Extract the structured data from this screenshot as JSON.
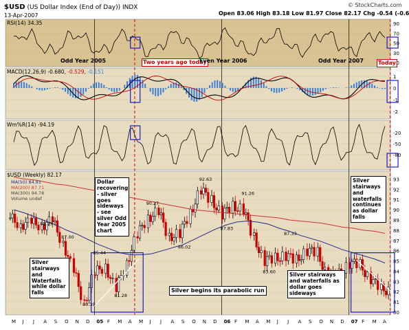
{
  "header": {
    "symbol": "$USD",
    "name": "(US Dollar Index (End of Day))",
    "exchange": "INDX",
    "date": "13-Apr-2007",
    "ohlc_text": "Open 83.06  High 83.18  Low 81.97  Close 82.17  Chg -0.54 (-0.65%)",
    "copyright": "© StockCharts.com"
  },
  "panels": {
    "rsi": {
      "label": "RSI(14) 34.35",
      "ticks": [
        "90",
        "70",
        "50",
        "30",
        "10"
      ]
    },
    "macd": {
      "label_main": "MACD(12,26,9) -0.680,",
      "label_sig": "-0.529,",
      "label_hist": "-0.151",
      "ticks": [
        "1",
        "0",
        "-1",
        "-2"
      ]
    },
    "willr": {
      "label": "Wm%R(14) -94.19",
      "ticks": [
        "-20",
        "-50",
        "-80"
      ]
    },
    "price": {
      "label": "$USD (Weekly) 82.17",
      "legend": [
        "MA(50) 84.81",
        "MA(200) 87.71",
        "MA(300) 94.78",
        "Volume undef"
      ],
      "ticks": [
        "93",
        "92",
        "91",
        "90",
        "89",
        "88",
        "87",
        "86",
        "85",
        "84",
        "83",
        "82",
        "81",
        "80"
      ]
    }
  },
  "x_axis": {
    "ticks": [
      "M",
      "J",
      "J",
      "A",
      "S",
      "O",
      "N",
      "D",
      "05",
      "F",
      "M",
      "A",
      "M",
      "J",
      "J",
      "A",
      "S",
      "O",
      "N",
      "D",
      "06",
      "F",
      "M",
      "A",
      "M",
      "J",
      "J",
      "A",
      "S",
      "O",
      "N",
      "D",
      "07",
      "F",
      "M",
      "A"
    ]
  },
  "annotations": {
    "odd_2005": "Odd Year 2005",
    "two_years": "Two years ago today",
    "even_2006": "Even Year 2006",
    "odd_2007": "Odd Year 2007",
    "today": "Today",
    "parabolic": "Silver begins its parabolic run",
    "callout_1": "Silver stairways and Waterfalls while dollar falls",
    "callout_2": "Dollar recovering - silver goes sideways - see silver Odd Year 2005 chart",
    "callout_3": "Silver stairways and waterfalls as dollar goes sideways",
    "callout_4": "Silver stairways and waterfalls continues as dollar falls"
  },
  "colors": {
    "panel_bg": "#e8dcc0",
    "rsi_bg": "#d9c392",
    "up": "#000000",
    "down": "#cc0000",
    "ma50": "#1f2a8a",
    "ma200": "#cc3333",
    "hist": "#3a7fd5",
    "box": "#1a1acc",
    "vline": "#cc0000"
  },
  "chart_data": {
    "type": "line",
    "title": "$USD (US Dollar Index (End of Day))",
    "price_labels": [
      {
        "x": "2004-08",
        "value": "88.29"
      },
      {
        "x": "2004-10",
        "value": "87.00"
      },
      {
        "x": "2005-01",
        "value": "85.44"
      },
      {
        "x": "2004-12",
        "value": "80.39"
      },
      {
        "x": "2005-03",
        "value": "81.28"
      },
      {
        "x": "2005-06",
        "value": "90.27"
      },
      {
        "x": "2005-09",
        "value": "86.02"
      },
      {
        "x": "2005-11",
        "value": "92.63"
      },
      {
        "x": "2006-01",
        "value": "87.83"
      },
      {
        "x": "2006-03",
        "value": "91.26"
      },
      {
        "x": "2006-05",
        "value": "83.60"
      },
      {
        "x": "2006-07",
        "value": "87.33"
      }
    ],
    "ylim": [
      80,
      93.5
    ],
    "x": [
      "2004-05",
      "2004-06",
      "2004-07",
      "2004-08",
      "2004-09",
      "2004-10",
      "2004-11",
      "2004-12",
      "2005-01",
      "2005-02",
      "2005-03",
      "2005-04",
      "2005-05",
      "2005-06",
      "2005-07",
      "2005-08",
      "2005-09",
      "2005-10",
      "2005-11",
      "2005-12",
      "2006-01",
      "2006-02",
      "2006-03",
      "2006-04",
      "2006-05",
      "2006-06",
      "2006-07",
      "2006-08",
      "2006-09",
      "2006-10",
      "2006-11",
      "2006-12",
      "2007-01",
      "2007-02",
      "2007-03",
      "2007-04"
    ],
    "series": [
      {
        "name": "$USD (Weekly)",
        "values": [
          89.2,
          88.6,
          88.7,
          88.5,
          88.9,
          86.8,
          84.0,
          81.0,
          83.8,
          84.5,
          82.2,
          84.8,
          87.5,
          89.2,
          89.8,
          87.4,
          87.6,
          89.7,
          91.9,
          91.0,
          89.5,
          90.4,
          90.0,
          87.3,
          85.0,
          85.3,
          85.5,
          85.1,
          86.0,
          85.8,
          83.4,
          83.7,
          84.8,
          84.6,
          83.3,
          82.2
        ]
      },
      {
        "name": "MA(50)",
        "values": [
          90.0,
          89.7,
          89.3,
          88.9,
          88.5,
          88.0,
          87.6,
          87.1,
          86.6,
          86.2,
          85.8,
          85.6,
          85.6,
          85.7,
          86.0,
          86.3,
          86.6,
          87.1,
          87.6,
          88.1,
          88.5,
          88.8,
          88.9,
          88.8,
          88.6,
          88.2,
          87.9,
          87.5,
          87.2,
          86.9,
          86.5,
          86.1,
          85.8,
          85.5,
          85.2,
          84.8
        ]
      },
      {
        "name": "MA(200)",
        "values": [
          93.2,
          93.0,
          92.9,
          92.7,
          92.5,
          92.4,
          92.2,
          92.0,
          91.8,
          91.6,
          91.4,
          91.2,
          91.0,
          90.8,
          90.6,
          90.4,
          90.2,
          90.0,
          89.9,
          89.8,
          89.7,
          89.6,
          89.5,
          89.4,
          89.3,
          89.2,
          89.0,
          88.9,
          88.8,
          88.7,
          88.5,
          88.3,
          88.2,
          88.0,
          87.9,
          87.7
        ]
      }
    ]
  }
}
